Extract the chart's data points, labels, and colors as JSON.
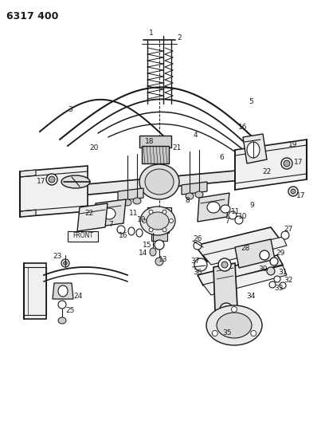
{
  "title": "6317 400",
  "bg": "#ffffff",
  "lc": "#1a1a1a",
  "tc": "#1a1a1a",
  "fw": 4.08,
  "fh": 5.33,
  "dpi": 100
}
